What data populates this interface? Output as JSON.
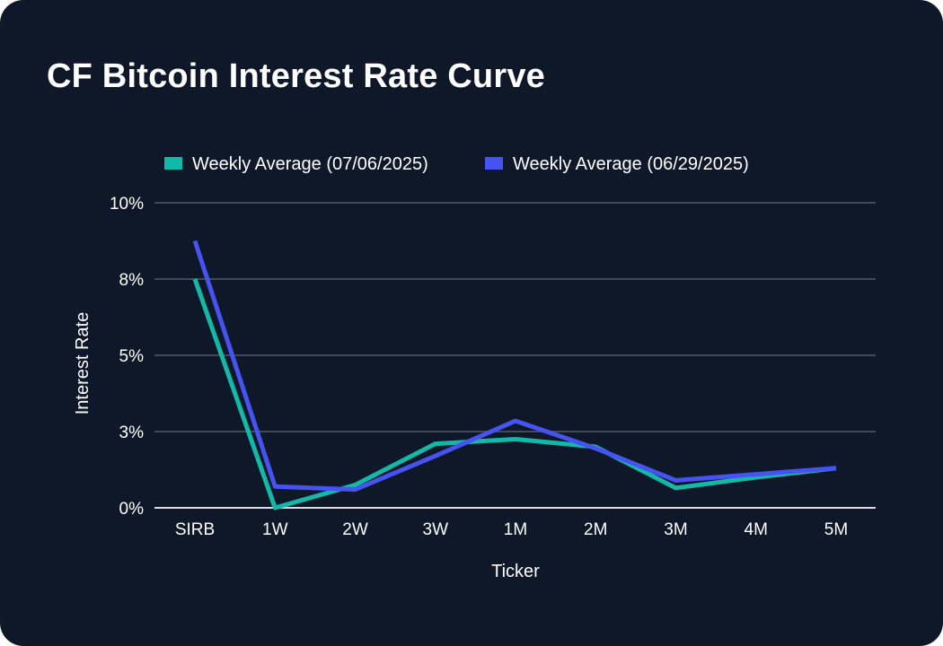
{
  "chart_data": {
    "type": "line",
    "title": "CF Bitcoin Interest Rate Curve",
    "xlabel": "Ticker",
    "ylabel": "Interest Rate",
    "categories": [
      "SIRB",
      "1W",
      "2W",
      "3W",
      "1M",
      "2M",
      "3M",
      "4M",
      "5M"
    ],
    "y_ticks": [
      0,
      2.5,
      5,
      7.5,
      10
    ],
    "y_tick_labels": [
      "0%",
      "3%",
      "5%",
      "8%",
      "10%"
    ],
    "ylim": [
      0,
      10
    ],
    "grid": true,
    "legend_position": "top",
    "series": [
      {
        "name": "Weekly Average (07/06/2025)",
        "color": "#14b8a6",
        "values": [
          7.5,
          0.0,
          0.75,
          2.1,
          2.25,
          2.0,
          0.65,
          1.0,
          1.3
        ]
      },
      {
        "name": "Weekly Average (06/29/2025)",
        "color": "#4653f0",
        "values": [
          8.75,
          0.7,
          0.6,
          1.7,
          2.85,
          1.95,
          0.9,
          1.1,
          1.3
        ]
      }
    ]
  }
}
